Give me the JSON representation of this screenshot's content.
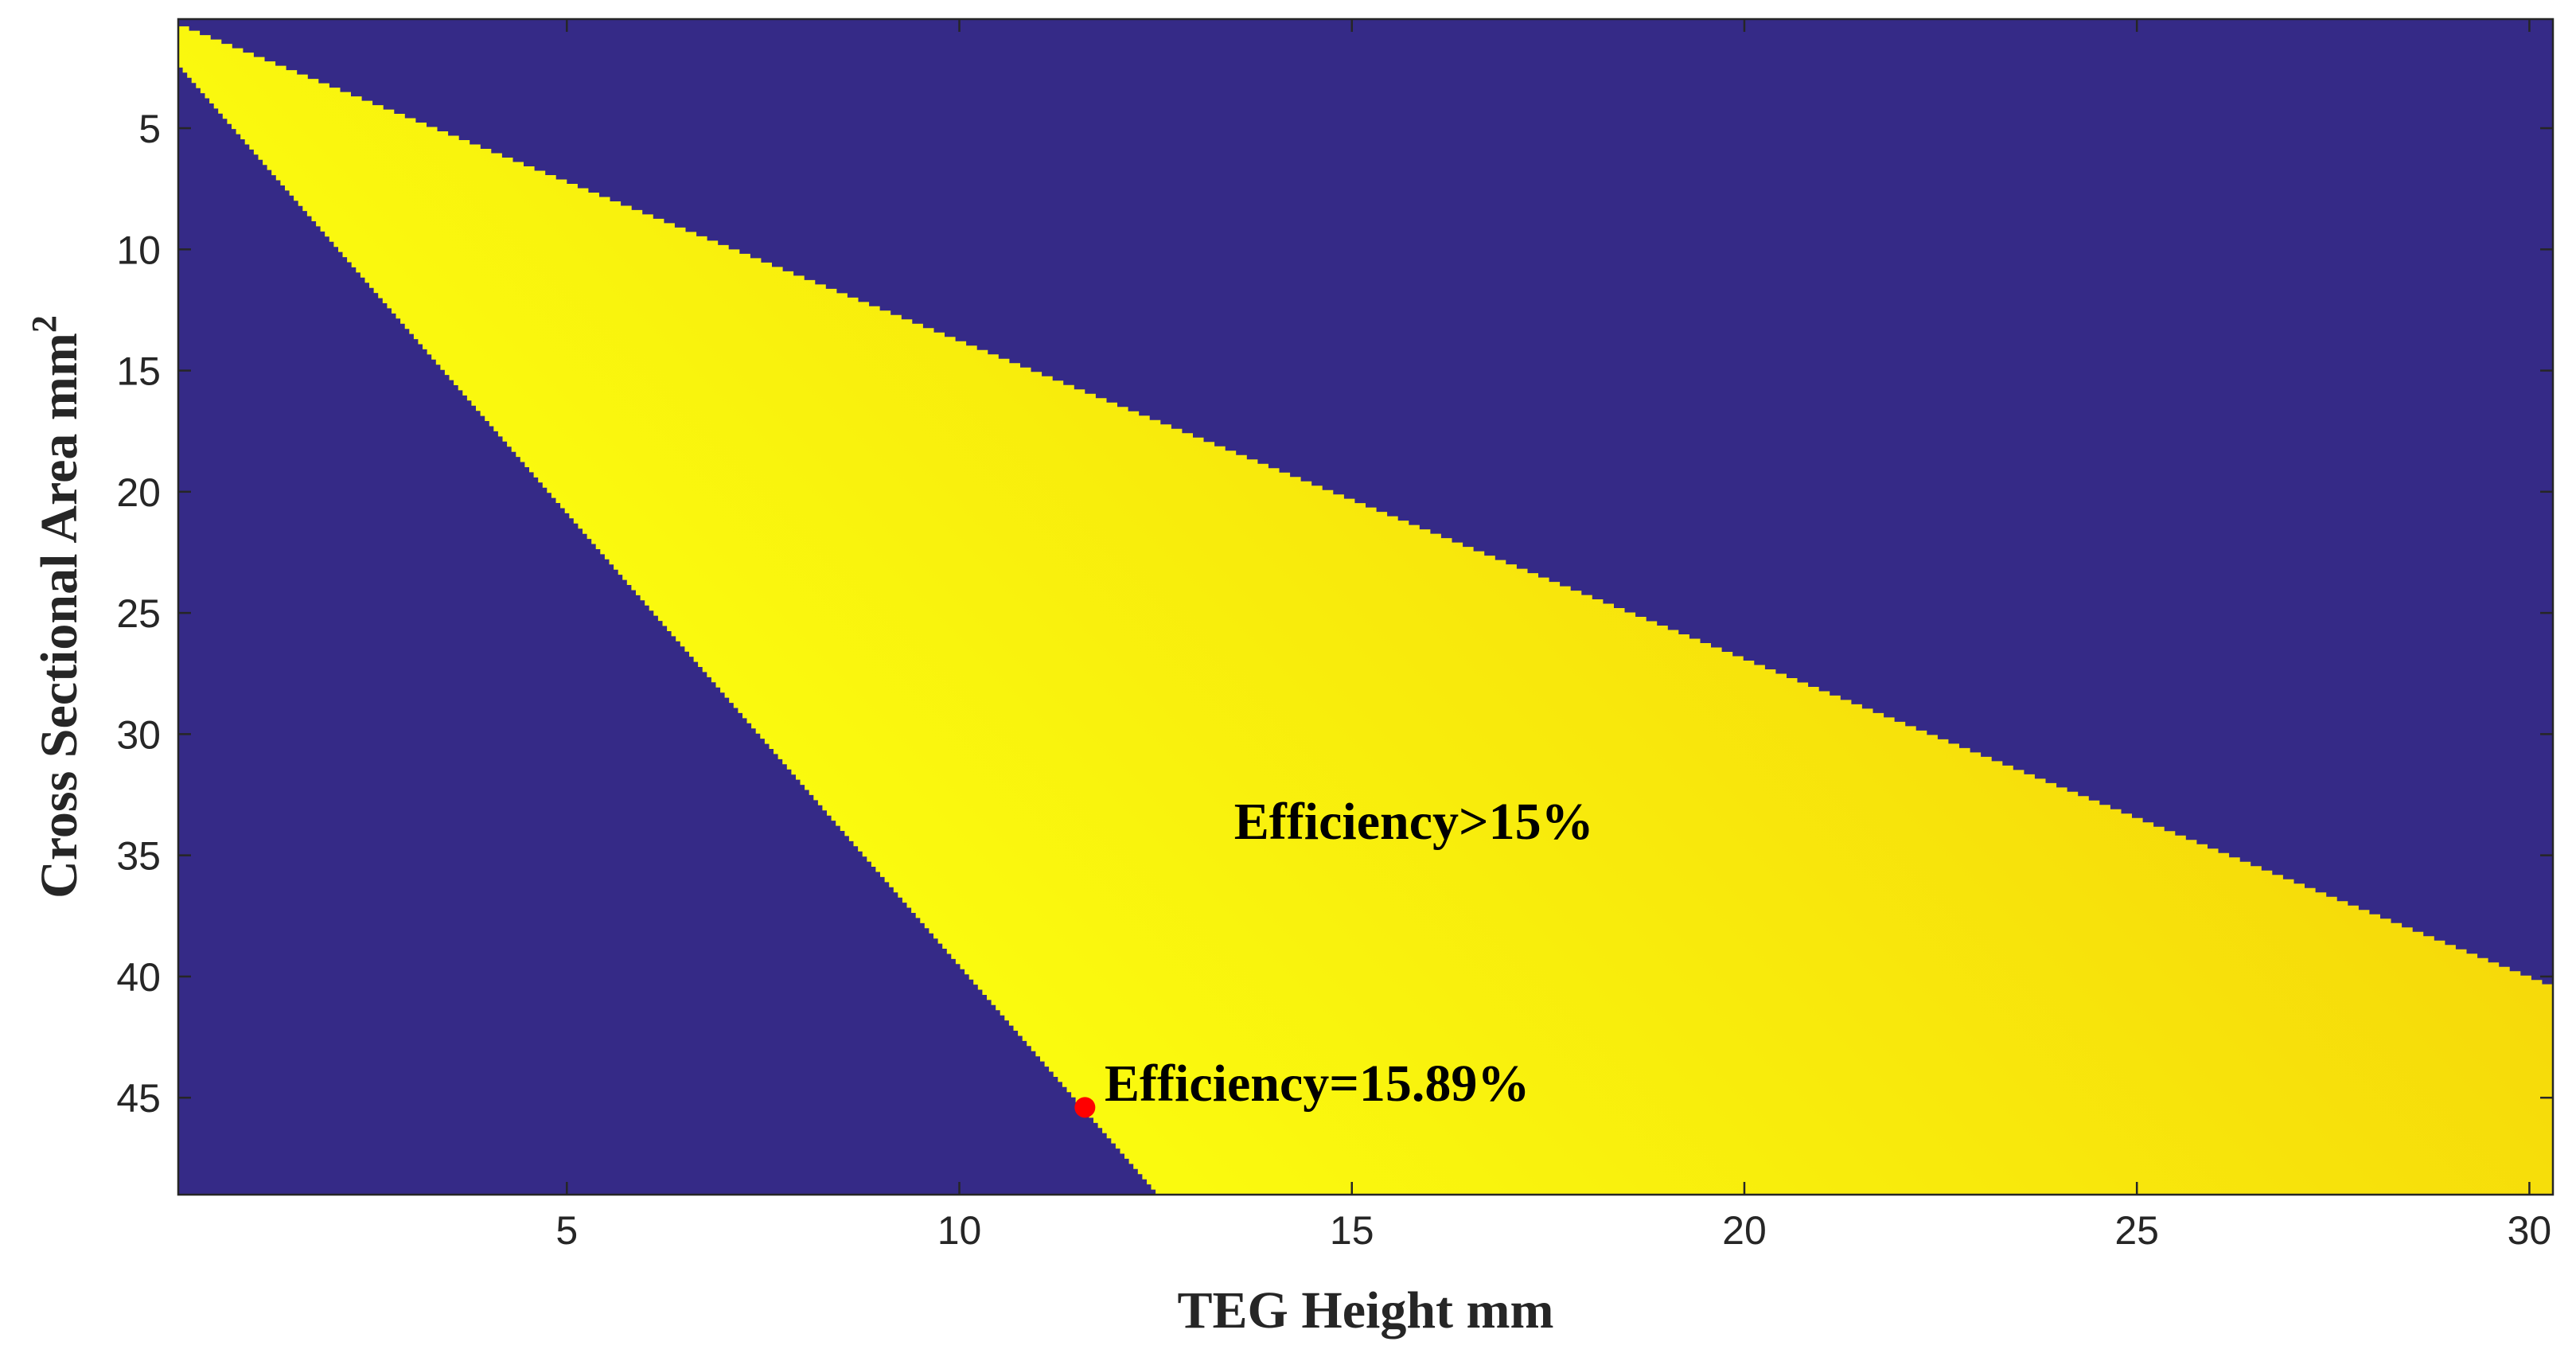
{
  "chart_data": {
    "type": "heatmap",
    "title": "",
    "xlabel": "TEG Height mm",
    "ylabel": "Cross Sectional Area mm",
    "ylabel_superscript": "2",
    "xlim": [
      0.05,
      30.3
    ],
    "ylim": [
      0.5,
      49
    ],
    "y_reversed": true,
    "grid": false,
    "legend": "none",
    "x_ticks": [
      5,
      10,
      15,
      20,
      25,
      30
    ],
    "y_ticks": [
      5,
      10,
      15,
      20,
      25,
      30,
      35,
      40,
      45
    ],
    "feasible_region": {
      "lower_boundary": [
        [
          0.05,
          2.5
        ],
        [
          12.5,
          49
        ]
      ],
      "upper_boundary": [
        [
          0.05,
          0.8
        ],
        [
          30.3,
          40.5
        ]
      ],
      "min_efficiency_percent": 15,
      "max_efficiency_percent": 15.89
    },
    "colors": {
      "background": "#352a87",
      "region_high": "#fafa0e",
      "region_low": "#f6da0a",
      "optimum_marker": "#ff0000"
    },
    "optimum_point": {
      "x": 11.6,
      "y": 45.4,
      "efficiency_percent": 15.89
    },
    "annotations": [
      {
        "text": "Efficiency>15%",
        "x": 13.5,
        "y": 33.6
      },
      {
        "text": "Efficiency=15.89%",
        "x": 11.85,
        "y": 44.4
      }
    ]
  }
}
